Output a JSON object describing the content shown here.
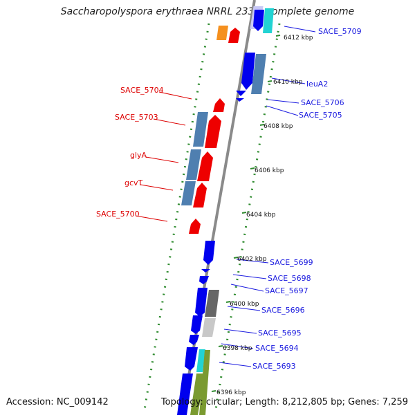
{
  "title": "Saccharopolyspora erythraea NRRL 2338, complete genome",
  "accession": "Accession: NC_009142",
  "summary": "Topology: circular; Length: 8,212,805 bp; Genes: 7,259",
  "colors": {
    "backbone": "#8a8a8a",
    "dotted_ring": "#2e8b2e",
    "forward_label": "#1a1adf",
    "reverse_label": "#dd0000",
    "forward_cds": "#0000ee",
    "reverse_cds": "#ee0000",
    "steelblue": "#4f7fb0",
    "orange": "#f5901e",
    "cyan": "#22d3d3",
    "gray": "#666666",
    "lightgray": "#c8c8c8",
    "olive": "#7a9a30"
  },
  "ticks": [
    {
      "label": "6412 kbp"
    },
    {
      "label": "6410 kbp"
    },
    {
      "label": "6408 kbp"
    },
    {
      "label": "6406 kbp"
    },
    {
      "label": "6404 kbp"
    },
    {
      "label": "6402 kbp"
    },
    {
      "label": "6400 kbp"
    },
    {
      "label": "6398 kbp"
    },
    {
      "label": "6396 kbp"
    }
  ],
  "forward_genes": [
    {
      "name": "SACE_5709"
    },
    {
      "name": "leuA2"
    },
    {
      "name": "SACE_5706"
    },
    {
      "name": "SACE_5705"
    },
    {
      "name": "SACE_5699"
    },
    {
      "name": "SACE_5698"
    },
    {
      "name": "SACE_5697"
    },
    {
      "name": "SACE_5696"
    },
    {
      "name": "SACE_5695"
    },
    {
      "name": "SACE_5694"
    },
    {
      "name": "SACE_5693"
    }
  ],
  "reverse_genes": [
    {
      "name": "SACE_5704"
    },
    {
      "name": "SACE_5703"
    },
    {
      "name": "glyA"
    },
    {
      "name": "gcvT"
    },
    {
      "name": "SACE_5700"
    }
  ]
}
